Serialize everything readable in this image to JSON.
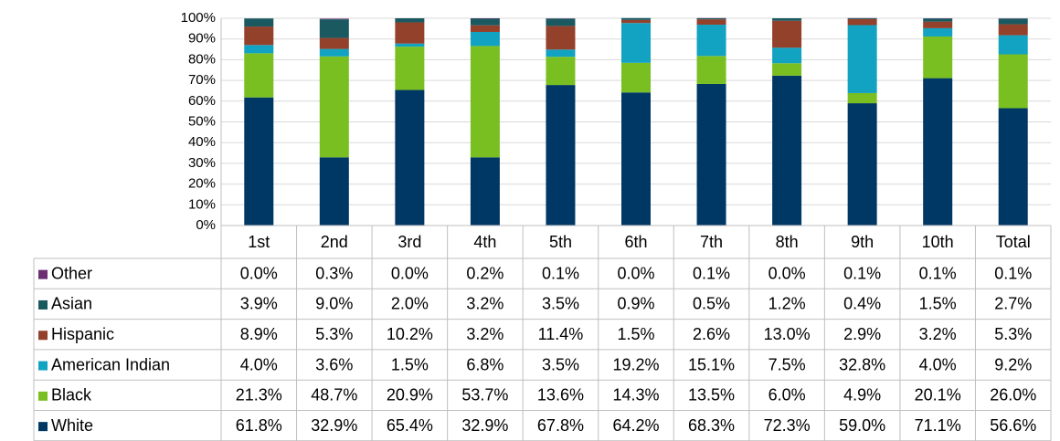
{
  "chart_data": {
    "type": "bar",
    "stacked": true,
    "categories": [
      "1st",
      "2nd",
      "3rd",
      "4th",
      "5th",
      "6th",
      "7th",
      "8th",
      "9th",
      "10th",
      "Total"
    ],
    "series": [
      {
        "name": "Other",
        "color": "#6b2e72",
        "values": [
          0.0,
          0.3,
          0.0,
          0.2,
          0.1,
          0.0,
          0.1,
          0.0,
          0.1,
          0.1,
          0.1
        ],
        "value_labels": [
          "0.0%",
          "0.3%",
          "0.0%",
          "0.2%",
          "0.1%",
          "0.0%",
          "0.1%",
          "0.0%",
          "0.1%",
          "0.1%",
          "0.1%"
        ]
      },
      {
        "name": "Asian",
        "color": "#1b5961",
        "values": [
          3.9,
          9.0,
          2.0,
          3.2,
          3.5,
          0.9,
          0.5,
          1.2,
          0.4,
          1.5,
          2.7
        ],
        "value_labels": [
          "3.9%",
          "9.0%",
          "2.0%",
          "3.2%",
          "3.5%",
          "0.9%",
          "0.5%",
          "1.2%",
          "0.4%",
          "1.5%",
          "2.7%"
        ]
      },
      {
        "name": "Hispanic",
        "color": "#93412b",
        "values": [
          8.9,
          5.3,
          10.2,
          3.2,
          11.4,
          1.5,
          2.6,
          13.0,
          2.9,
          3.2,
          5.3
        ],
        "value_labels": [
          "8.9%",
          "5.3%",
          "10.2%",
          "3.2%",
          "11.4%",
          "1.5%",
          "2.6%",
          "13.0%",
          "2.9%",
          "3.2%",
          "5.3%"
        ]
      },
      {
        "name": "American Indian",
        "color": "#12a2c2",
        "values": [
          4.0,
          3.6,
          1.5,
          6.8,
          3.5,
          19.2,
          15.1,
          7.5,
          32.8,
          4.0,
          9.2
        ],
        "value_labels": [
          "4.0%",
          "3.6%",
          "1.5%",
          "6.8%",
          "3.5%",
          "19.2%",
          "15.1%",
          "7.5%",
          "32.8%",
          "4.0%",
          "9.2%"
        ]
      },
      {
        "name": "Black",
        "color": "#7abf22",
        "values": [
          21.3,
          48.7,
          20.9,
          53.7,
          13.6,
          14.3,
          13.5,
          6.0,
          4.9,
          20.1,
          26.0
        ],
        "value_labels": [
          "21.3%",
          "48.7%",
          "20.9%",
          "53.7%",
          "13.6%",
          "14.3%",
          "13.5%",
          "6.0%",
          "4.9%",
          "20.1%",
          "26.0%"
        ]
      },
      {
        "name": "White",
        "color": "#003865",
        "values": [
          61.8,
          32.9,
          65.4,
          32.9,
          67.8,
          64.2,
          68.3,
          72.3,
          59.0,
          71.1,
          56.6
        ],
        "value_labels": [
          "61.8%",
          "32.9%",
          "65.4%",
          "32.9%",
          "67.8%",
          "64.2%",
          "68.3%",
          "72.3%",
          "59.0%",
          "71.1%",
          "56.6%"
        ]
      }
    ],
    "ylim": [
      0,
      100
    ],
    "yticks": [
      {
        "value": 0,
        "label": "0%"
      },
      {
        "value": 10,
        "label": "10%"
      },
      {
        "value": 20,
        "label": "20%"
      },
      {
        "value": 30,
        "label": "30%"
      },
      {
        "value": 40,
        "label": "40%"
      },
      {
        "value": 50,
        "label": "50%"
      },
      {
        "value": 60,
        "label": "60%"
      },
      {
        "value": 70,
        "label": "70%"
      },
      {
        "value": 80,
        "label": "80%"
      },
      {
        "value": 90,
        "label": "90%"
      },
      {
        "value": 100,
        "label": "100%"
      }
    ],
    "grid": true
  }
}
